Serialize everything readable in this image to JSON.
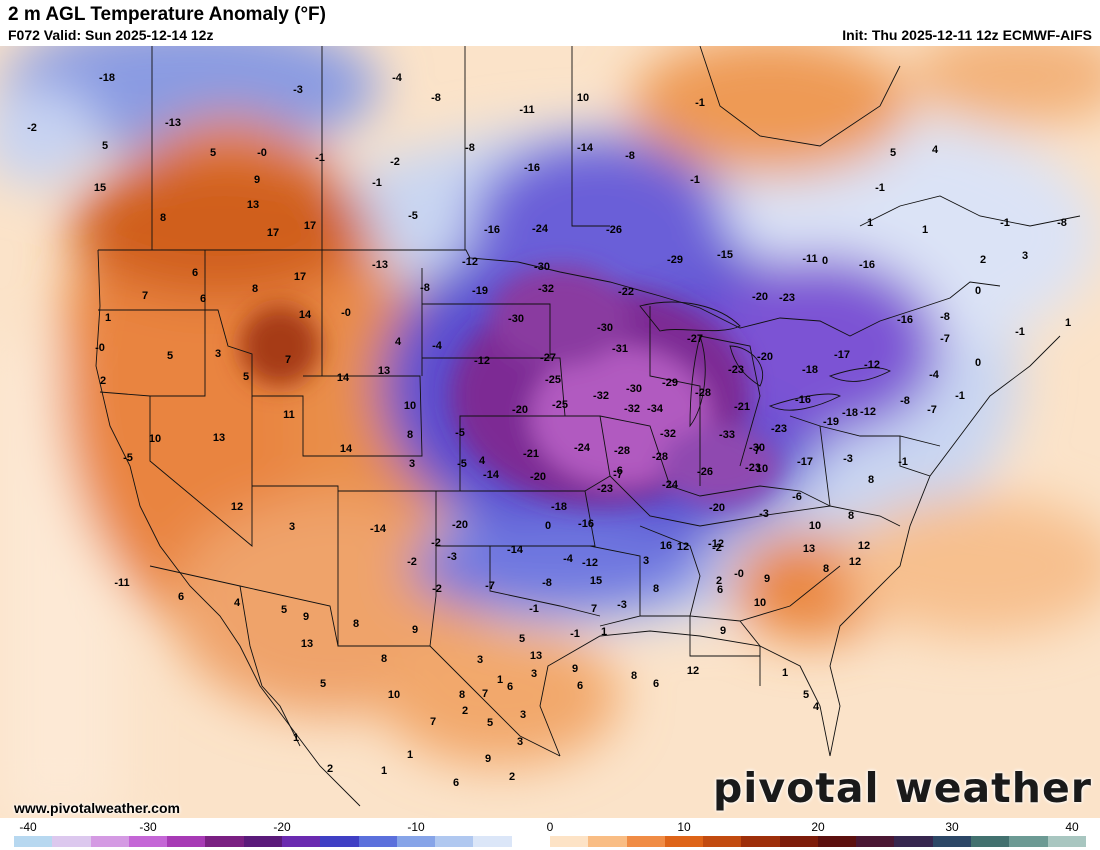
{
  "header": {
    "title": "2 m AGL Temperature Anomaly (°F)",
    "valid": "F072 Valid: Sun 2025-12-14 12z",
    "init": "Init: Thu 2025-12-11 12z ECMWF-AIFS"
  },
  "footer": {
    "website": "www.pivotalweather.com",
    "brand": "pivotal weather"
  },
  "colorbar": {
    "ticks": [
      "-40",
      "-30",
      "-20",
      "-10",
      "0",
      "10",
      "20",
      "30",
      "40"
    ],
    "colors": [
      "#b7d8f0",
      "#dcc8ee",
      "#d49ae3",
      "#c466d6",
      "#a73ab5",
      "#7a2082",
      "#5a1a7a",
      "#6a2ab0",
      "#3f3fc4",
      "#5b70dc",
      "#86a4e8",
      "#b0c8f0",
      "#dbe6f8",
      "#ffffff",
      "#fde3c6",
      "#f9bd84",
      "#f08c45",
      "#de6418",
      "#c24b10",
      "#9e2f0a",
      "#7d1c0a",
      "#5c100e",
      "#4a1733",
      "#36264f",
      "#2c4766",
      "#42716f",
      "#6c9a94",
      "#a8c6c0"
    ]
  },
  "map_values": [
    {
      "v": "-18"
    },
    {
      "v": "-2"
    },
    {
      "v": "-13"
    },
    {
      "v": "-3"
    },
    {
      "v": "-4"
    },
    {
      "v": "-8"
    },
    {
      "v": "10"
    },
    {
      "v": "-11"
    },
    {
      "v": "-1"
    },
    {
      "v": "-8"
    },
    {
      "v": "-14"
    },
    {
      "v": "-8"
    },
    {
      "v": "-1"
    },
    {
      "v": "5"
    },
    {
      "v": "5"
    },
    {
      "v": "-0"
    },
    {
      "v": "-1"
    },
    {
      "v": "-2"
    },
    {
      "v": "-16"
    },
    {
      "v": "5"
    },
    {
      "v": "4"
    },
    {
      "v": "9"
    },
    {
      "v": "15"
    },
    {
      "v": "-1"
    },
    {
      "v": "-1"
    },
    {
      "v": "8"
    },
    {
      "v": "13"
    },
    {
      "v": "-5"
    },
    {
      "v": "-16"
    },
    {
      "v": "-24"
    },
    {
      "v": "-26"
    },
    {
      "v": "17"
    },
    {
      "v": "17"
    },
    {
      "v": "1"
    },
    {
      "v": "1"
    },
    {
      "v": "-1"
    },
    {
      "v": "-8"
    },
    {
      "v": "0"
    },
    {
      "v": "6"
    },
    {
      "v": "8"
    },
    {
      "v": "17"
    },
    {
      "v": "-13"
    },
    {
      "v": "-12"
    },
    {
      "v": "-30"
    },
    {
      "v": "-29"
    },
    {
      "v": "-15"
    },
    {
      "v": "-11"
    },
    {
      "v": "-16"
    },
    {
      "v": "2"
    },
    {
      "v": "3"
    },
    {
      "v": "7"
    },
    {
      "v": "6"
    },
    {
      "v": "-8"
    },
    {
      "v": "-19"
    },
    {
      "v": "-32"
    },
    {
      "v": "-22"
    },
    {
      "v": "-20"
    },
    {
      "v": "-23"
    },
    {
      "v": "0"
    },
    {
      "v": "1"
    },
    {
      "v": "14"
    },
    {
      "v": "-0"
    },
    {
      "v": "-30"
    },
    {
      "v": "-30"
    },
    {
      "v": "-16"
    },
    {
      "v": "-8"
    },
    {
      "v": "-7"
    },
    {
      "v": "-1"
    },
    {
      "v": "1"
    },
    {
      "v": "-0"
    },
    {
      "v": "5"
    },
    {
      "v": "3"
    },
    {
      "v": "7"
    },
    {
      "v": "4"
    },
    {
      "v": "-4"
    },
    {
      "v": "-12"
    },
    {
      "v": "-27"
    },
    {
      "v": "-31"
    },
    {
      "v": "-27"
    },
    {
      "v": "-20"
    },
    {
      "v": "-17"
    },
    {
      "v": "-12"
    },
    {
      "v": "2"
    },
    {
      "v": "5"
    },
    {
      "v": "14"
    },
    {
      "v": "13"
    },
    {
      "v": "-25"
    },
    {
      "v": "-32"
    },
    {
      "v": "-30"
    },
    {
      "v": "-29"
    },
    {
      "v": "-23"
    },
    {
      "v": "-18"
    },
    {
      "v": "-4"
    },
    {
      "v": "0"
    },
    {
      "v": "11"
    },
    {
      "v": "10"
    },
    {
      "v": "-20"
    },
    {
      "v": "-25"
    },
    {
      "v": "-32"
    },
    {
      "v": "-28"
    },
    {
      "v": "-21"
    },
    {
      "v": "-16"
    },
    {
      "v": "-18"
    },
    {
      "v": "-8"
    },
    {
      "v": "-1"
    },
    {
      "v": "10"
    },
    {
      "v": "13"
    },
    {
      "v": "8"
    },
    {
      "v": "-5"
    },
    {
      "v": "-34"
    },
    {
      "v": "-32"
    },
    {
      "v": "-33"
    },
    {
      "v": "-23"
    },
    {
      "v": "-19"
    },
    {
      "v": "-12"
    },
    {
      "v": "-7"
    },
    {
      "v": "14"
    },
    {
      "v": "-21"
    },
    {
      "v": "-24"
    },
    {
      "v": "-28"
    },
    {
      "v": "-28"
    },
    {
      "v": "-30"
    },
    {
      "v": "-5"
    },
    {
      "v": "3"
    },
    {
      "v": "-14"
    },
    {
      "v": "-20"
    },
    {
      "v": "-26"
    },
    {
      "v": "-23"
    },
    {
      "v": "-17"
    },
    {
      "v": "-3"
    },
    {
      "v": "-5"
    },
    {
      "v": "-1"
    },
    {
      "v": "8"
    },
    {
      "v": "7"
    },
    {
      "v": "-23"
    },
    {
      "v": "-24"
    },
    {
      "v": "-6"
    },
    {
      "v": "-3"
    },
    {
      "v": "-2"
    },
    {
      "v": "12"
    },
    {
      "v": "-18"
    },
    {
      "v": "-20"
    },
    {
      "v": "-7"
    },
    {
      "v": "8"
    },
    {
      "v": "0"
    },
    {
      "v": "10"
    },
    {
      "v": "4"
    },
    {
      "v": "-6"
    },
    {
      "v": "-16"
    },
    {
      "v": "-14"
    },
    {
      "v": "-20"
    },
    {
      "v": "10"
    },
    {
      "v": "3"
    },
    {
      "v": "-2"
    },
    {
      "v": "-14"
    },
    {
      "v": "-12"
    },
    {
      "v": "12"
    },
    {
      "v": "-11"
    },
    {
      "v": "16"
    },
    {
      "v": "13"
    },
    {
      "v": "12"
    },
    {
      "v": "8"
    },
    {
      "v": "6"
    },
    {
      "v": "-4"
    },
    {
      "v": "-12"
    },
    {
      "v": "-3"
    },
    {
      "v": "3"
    },
    {
      "v": "12"
    },
    {
      "v": "-8"
    },
    {
      "v": "-7"
    },
    {
      "v": "-2"
    },
    {
      "v": "-2"
    },
    {
      "v": "4"
    },
    {
      "v": "5"
    },
    {
      "v": "9"
    },
    {
      "v": "9"
    },
    {
      "v": "15"
    },
    {
      "v": "-3"
    },
    {
      "v": "2"
    },
    {
      "v": "-0"
    },
    {
      "v": "8"
    },
    {
      "v": "6"
    },
    {
      "v": "10"
    },
    {
      "v": "7"
    },
    {
      "v": "-1"
    },
    {
      "v": "-1"
    },
    {
      "v": "9"
    },
    {
      "v": "5"
    },
    {
      "v": "9"
    },
    {
      "v": "1"
    },
    {
      "v": "9"
    },
    {
      "v": "6"
    },
    {
      "v": "8"
    },
    {
      "v": "13"
    },
    {
      "v": "8"
    },
    {
      "v": "3"
    },
    {
      "v": "13"
    },
    {
      "v": "5"
    },
    {
      "v": "7"
    },
    {
      "v": "6"
    },
    {
      "v": "3"
    },
    {
      "v": "6"
    },
    {
      "v": "8"
    },
    {
      "v": "12"
    },
    {
      "v": "5"
    },
    {
      "v": "1"
    },
    {
      "v": "4"
    },
    {
      "v": "1"
    },
    {
      "v": "8"
    },
    {
      "v": "10"
    },
    {
      "v": "1"
    },
    {
      "v": "3"
    },
    {
      "v": "2"
    },
    {
      "v": "1"
    },
    {
      "v": "2"
    },
    {
      "v": "7"
    },
    {
      "v": "5"
    },
    {
      "v": "1"
    },
    {
      "v": "6"
    },
    {
      "v": "9"
    },
    {
      "v": "3"
    },
    {
      "v": "2"
    }
  ]
}
